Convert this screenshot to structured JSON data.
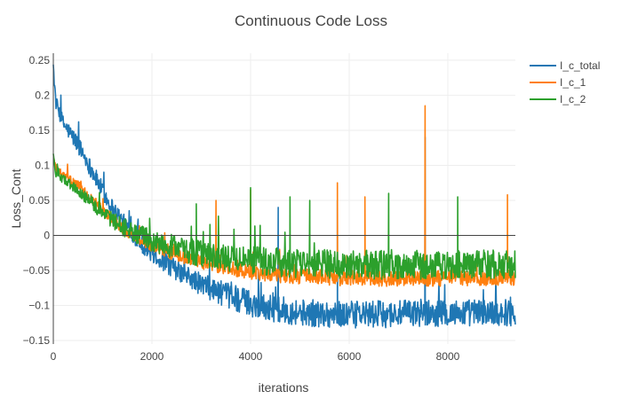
{
  "chart_data": {
    "type": "line",
    "title": "Continuous Code Loss",
    "xlabel": "iterations",
    "ylabel": "Loss_Cont",
    "xlim": [
      0,
      9370
    ],
    "ylim": [
      -0.155,
      0.26
    ],
    "grid": true,
    "zeroline": true,
    "legend_position": "top-right",
    "x_ticks": [
      {
        "value": 0,
        "label": "0"
      },
      {
        "value": 2000,
        "label": "2000"
      },
      {
        "value": 4000,
        "label": "4000"
      },
      {
        "value": 6000,
        "label": "6000"
      },
      {
        "value": 8000,
        "label": "8000"
      }
    ],
    "y_ticks": [
      {
        "value": 0.25,
        "label": "0.25"
      },
      {
        "value": 0.2,
        "label": "0.2"
      },
      {
        "value": 0.15,
        "label": "0.15"
      },
      {
        "value": 0.1,
        "label": "0.1"
      },
      {
        "value": 0.05,
        "label": "0.05"
      },
      {
        "value": 0,
        "label": "0"
      },
      {
        "value": -0.05,
        "label": "−0.05"
      },
      {
        "value": -0.1,
        "label": "−0.1"
      },
      {
        "value": -0.15,
        "label": "−0.15"
      }
    ],
    "series": [
      {
        "name": "I_c_total",
        "color": "#1f77b4",
        "x": [
          0,
          50,
          200,
          500,
          800,
          1100,
          1400,
          1700,
          2000,
          2500,
          3000,
          3500,
          4000,
          4500,
          5000,
          5500,
          6000,
          6500,
          7000,
          7500,
          8000,
          8500,
          9000,
          9370
        ],
        "y": [
          0.24,
          0.19,
          0.16,
          0.13,
          0.09,
          0.05,
          0.02,
          -0.005,
          -0.025,
          -0.05,
          -0.07,
          -0.085,
          -0.097,
          -0.105,
          -0.11,
          -0.112,
          -0.113,
          -0.113,
          -0.112,
          -0.111,
          -0.111,
          -0.11,
          -0.11,
          -0.11
        ],
        "noise": [
          0.006,
          0.006,
          0.007,
          0.008,
          0.008,
          0.008,
          0.008,
          0.008,
          0.009,
          0.009,
          0.01,
          0.011,
          0.012,
          0.012,
          0.012,
          0.012,
          0.012,
          0.012,
          0.012,
          0.012,
          0.012,
          0.012,
          0.012,
          0.012
        ],
        "spikes": [
          {
            "x": 7540,
            "y": 0.14
          },
          {
            "x": 4560,
            "y": 0.04
          },
          {
            "x": 5760,
            "y": 0.05
          }
        ]
      },
      {
        "name": "I_c_1",
        "color": "#ff7f0e",
        "x": [
          0,
          50,
          200,
          500,
          800,
          1100,
          1400,
          1700,
          2000,
          2500,
          3000,
          3500,
          4000,
          4500,
          5000,
          5500,
          6000,
          6500,
          7000,
          7500,
          8000,
          8500,
          9000,
          9370
        ],
        "y": [
          0.11,
          0.095,
          0.085,
          0.07,
          0.05,
          0.03,
          0.01,
          -0.003,
          -0.015,
          -0.028,
          -0.038,
          -0.046,
          -0.052,
          -0.056,
          -0.058,
          -0.06,
          -0.061,
          -0.062,
          -0.062,
          -0.062,
          -0.061,
          -0.061,
          -0.061,
          -0.06
        ],
        "noise": [
          0.004,
          0.004,
          0.004,
          0.005,
          0.005,
          0.005,
          0.005,
          0.005,
          0.005,
          0.006,
          0.006,
          0.006,
          0.007,
          0.007,
          0.007,
          0.007,
          0.007,
          0.007,
          0.007,
          0.007,
          0.007,
          0.007,
          0.007,
          0.007
        ],
        "spikes": [
          {
            "x": 7540,
            "y": 0.185
          },
          {
            "x": 4000,
            "y": 0.065
          },
          {
            "x": 5760,
            "y": 0.075
          },
          {
            "x": 9210,
            "y": 0.058
          },
          {
            "x": 6320,
            "y": 0.055
          },
          {
            "x": 3300,
            "y": 0.05
          }
        ]
      },
      {
        "name": "I_c_2",
        "color": "#2ca02c",
        "x": [
          0,
          50,
          200,
          500,
          800,
          1100,
          1400,
          1700,
          2000,
          2500,
          3000,
          3500,
          4000,
          4500,
          5000,
          5500,
          6000,
          6500,
          7000,
          7500,
          8000,
          8500,
          9000,
          9370
        ],
        "y": [
          0.115,
          0.09,
          0.08,
          0.065,
          0.045,
          0.027,
          0.012,
          0.002,
          -0.008,
          -0.018,
          -0.026,
          -0.032,
          -0.036,
          -0.038,
          -0.04,
          -0.041,
          -0.042,
          -0.042,
          -0.042,
          -0.042,
          -0.042,
          -0.042,
          -0.041,
          -0.041
        ],
        "noise": [
          0.004,
          0.004,
          0.004,
          0.005,
          0.006,
          0.007,
          0.008,
          0.009,
          0.01,
          0.011,
          0.012,
          0.012,
          0.013,
          0.013,
          0.013,
          0.013,
          0.013,
          0.013,
          0.013,
          0.013,
          0.013,
          0.013,
          0.013,
          0.013
        ],
        "spikes": [
          {
            "x": 4000,
            "y": 0.068
          },
          {
            "x": 4800,
            "y": 0.055
          },
          {
            "x": 6800,
            "y": 0.06
          },
          {
            "x": 8200,
            "y": 0.055
          },
          {
            "x": 5200,
            "y": 0.05
          },
          {
            "x": 2900,
            "y": 0.045
          }
        ]
      }
    ]
  }
}
